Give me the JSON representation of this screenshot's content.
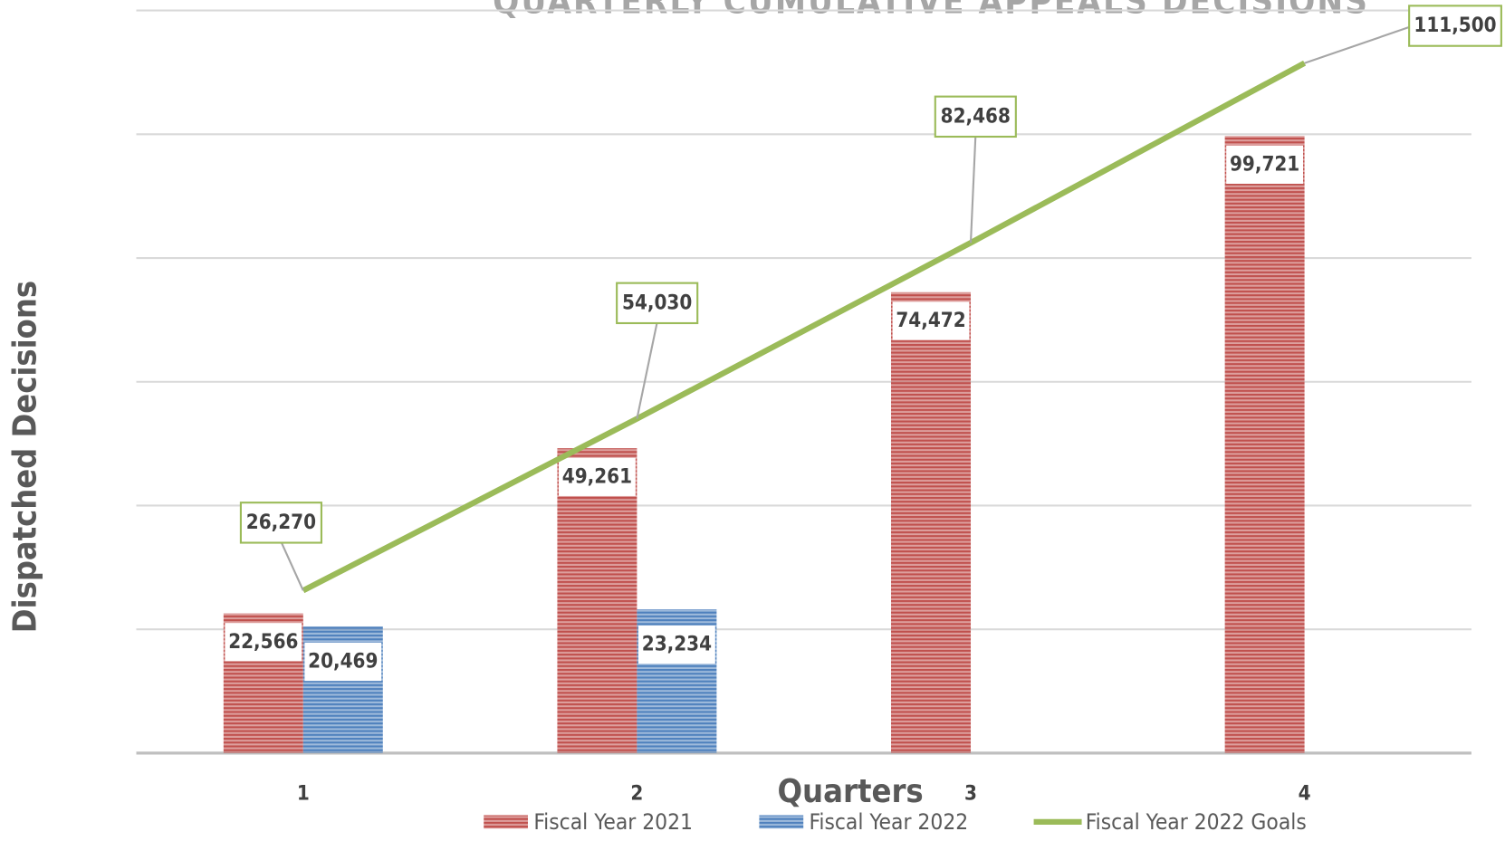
{
  "chart_data": {
    "type": "bar",
    "title": "QUARTERLY CUMULATIVE APPEALS DECISIONS",
    "x_label": "Quarters",
    "y_label": "Dispatched Decisions",
    "categories": [
      "1",
      "2",
      "3",
      "4"
    ],
    "series": [
      {
        "name": "Fiscal Year 2021",
        "type": "bar",
        "color": "#c0504d",
        "values": [
          22566,
          49261,
          74472,
          99721
        ],
        "value_labels": [
          "22,566",
          "49,261",
          "74,472",
          "99,721"
        ]
      },
      {
        "name": "Fiscal Year 2022",
        "type": "bar",
        "color": "#4f81bd",
        "values": [
          20469,
          23234,
          null,
          null
        ],
        "value_labels": [
          "20,469",
          "23,234",
          null,
          null
        ]
      },
      {
        "name": "Fiscal Year 2022 Goals",
        "type": "line",
        "color": "#9bbb59",
        "values": [
          26270,
          54030,
          82468,
          111500
        ],
        "value_labels": [
          "26,270",
          "54,030",
          "82,468",
          "111,500"
        ]
      }
    ],
    "ylim": [
      0,
      120000
    ],
    "yticks": [
      0,
      20000,
      40000,
      60000,
      80000,
      100000,
      120000
    ],
    "grid": true,
    "legend": "bottom"
  }
}
